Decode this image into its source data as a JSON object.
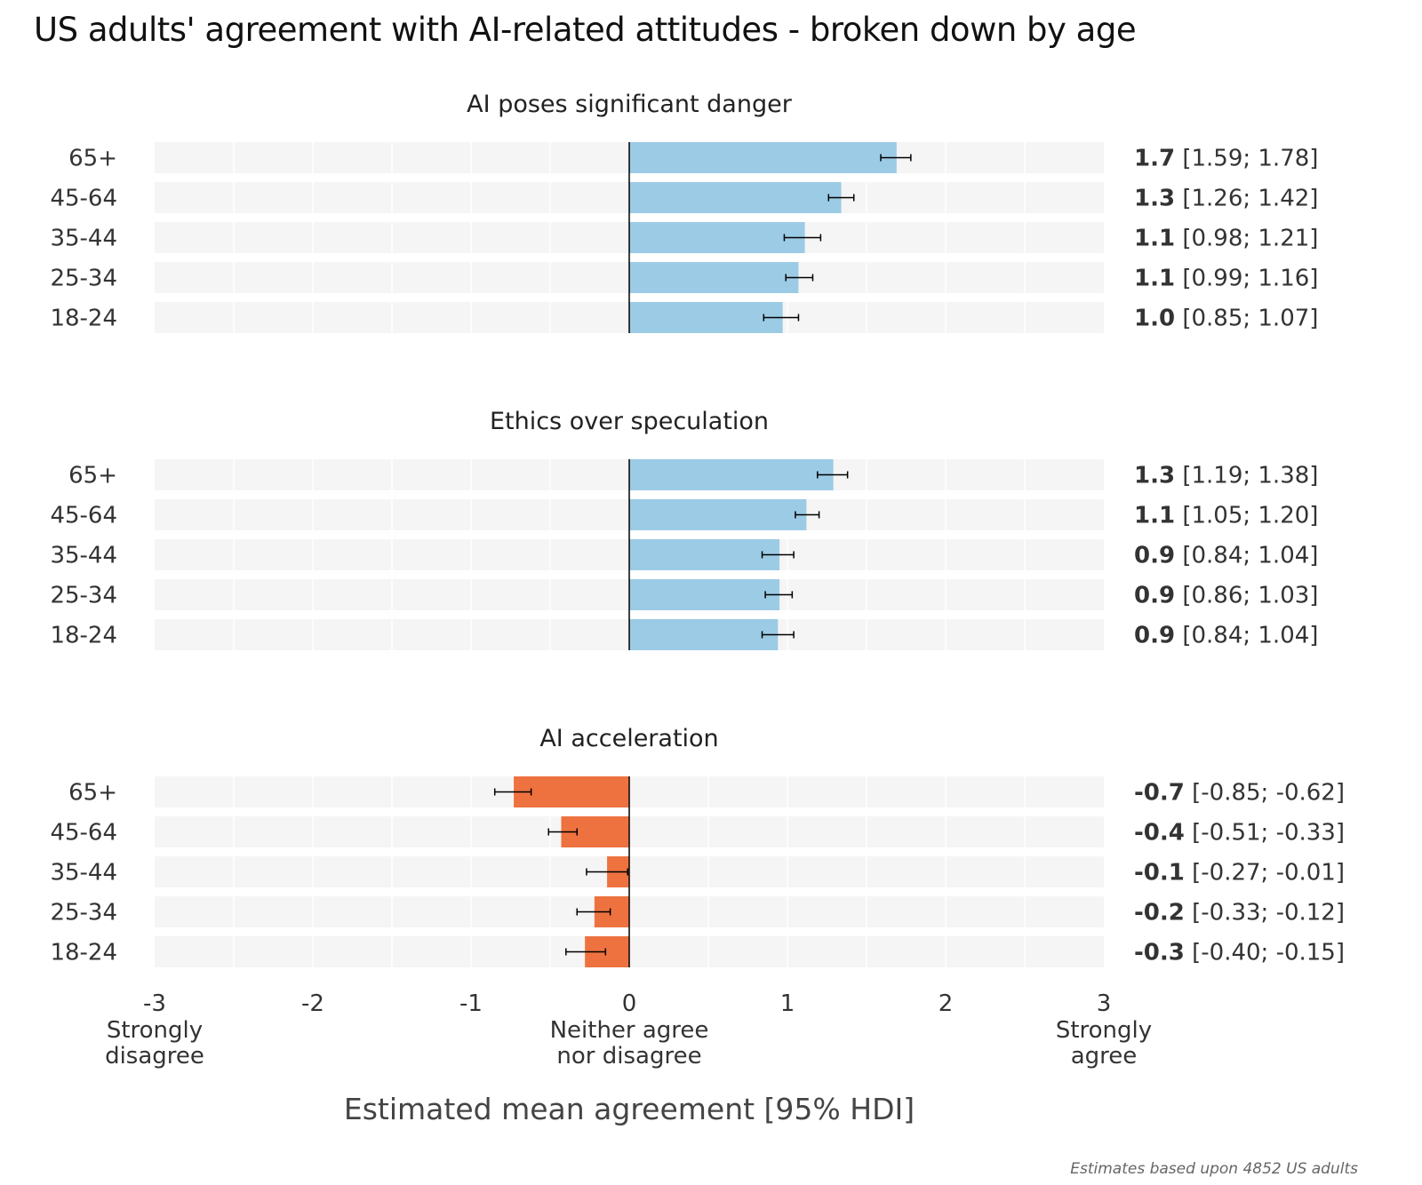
{
  "title": "US adults' agreement with AI-related attitudes - broken down by age",
  "footnote": "Estimates based upon 4852 US adults",
  "colors": {
    "positive": "#9ccbe5",
    "negative": "#ee7240",
    "row_background": "#f5f5f5",
    "zero_line": "#000000",
    "text": "#333333"
  },
  "chart_data": {
    "type": "bar",
    "orientation": "horizontal",
    "xlabel": "Estimated mean agreement [95% HDI]",
    "xlim": [
      -3,
      3
    ],
    "x_ticks": [
      -3,
      -2,
      -1,
      0,
      1,
      2,
      3
    ],
    "x_tick_labels": [
      "-3",
      "-2",
      "-1",
      "0",
      "1",
      "2",
      "3"
    ],
    "x_tick_sublabels": {
      "-3": [
        "Strongly",
        "disagree"
      ],
      "0": [
        "Neither agree",
        "nor disagree"
      ],
      "3": [
        "Strongly",
        "agree"
      ]
    },
    "categories": [
      "65+",
      "45-64",
      "35-44",
      "25-34",
      "18-24"
    ],
    "panels": [
      {
        "title": "AI poses significant danger",
        "values": [
          1.69,
          1.34,
          1.11,
          1.07,
          0.97
        ],
        "lower": [
          1.59,
          1.26,
          0.98,
          0.99,
          0.85
        ],
        "upper": [
          1.78,
          1.42,
          1.21,
          1.16,
          1.07
        ],
        "labels": [
          {
            "value": "1.7",
            "interval": "[1.59; 1.78]"
          },
          {
            "value": "1.3",
            "interval": "[1.26; 1.42]"
          },
          {
            "value": "1.1",
            "interval": "[0.98; 1.21]"
          },
          {
            "value": "1.1",
            "interval": "[0.99; 1.16]"
          },
          {
            "value": "1.0",
            "interval": "[0.85; 1.07]"
          }
        ]
      },
      {
        "title": "Ethics over speculation",
        "values": [
          1.29,
          1.12,
          0.95,
          0.95,
          0.94
        ],
        "lower": [
          1.19,
          1.05,
          0.84,
          0.86,
          0.84
        ],
        "upper": [
          1.38,
          1.2,
          1.04,
          1.03,
          1.04
        ],
        "labels": [
          {
            "value": "1.3",
            "interval": "[1.19; 1.38]"
          },
          {
            "value": "1.1",
            "interval": "[1.05; 1.20]"
          },
          {
            "value": "0.9",
            "interval": "[0.84; 1.04]"
          },
          {
            "value": "0.9",
            "interval": "[0.86; 1.03]"
          },
          {
            "value": "0.9",
            "interval": "[0.84; 1.04]"
          }
        ]
      },
      {
        "title": "AI acceleration",
        "values": [
          -0.73,
          -0.43,
          -0.14,
          -0.22,
          -0.28
        ],
        "lower": [
          -0.85,
          -0.51,
          -0.27,
          -0.33,
          -0.4
        ],
        "upper": [
          -0.62,
          -0.33,
          -0.01,
          -0.12,
          -0.15
        ],
        "labels": [
          {
            "value": "-0.7",
            "interval": "[-0.85; -0.62]"
          },
          {
            "value": "-0.4",
            "interval": "[-0.51; -0.33]"
          },
          {
            "value": "-0.1",
            "interval": "[-0.27; -0.01]"
          },
          {
            "value": "-0.2",
            "interval": "[-0.33; -0.12]"
          },
          {
            "value": "-0.3",
            "interval": "[-0.40; -0.15]"
          }
        ]
      }
    ]
  }
}
